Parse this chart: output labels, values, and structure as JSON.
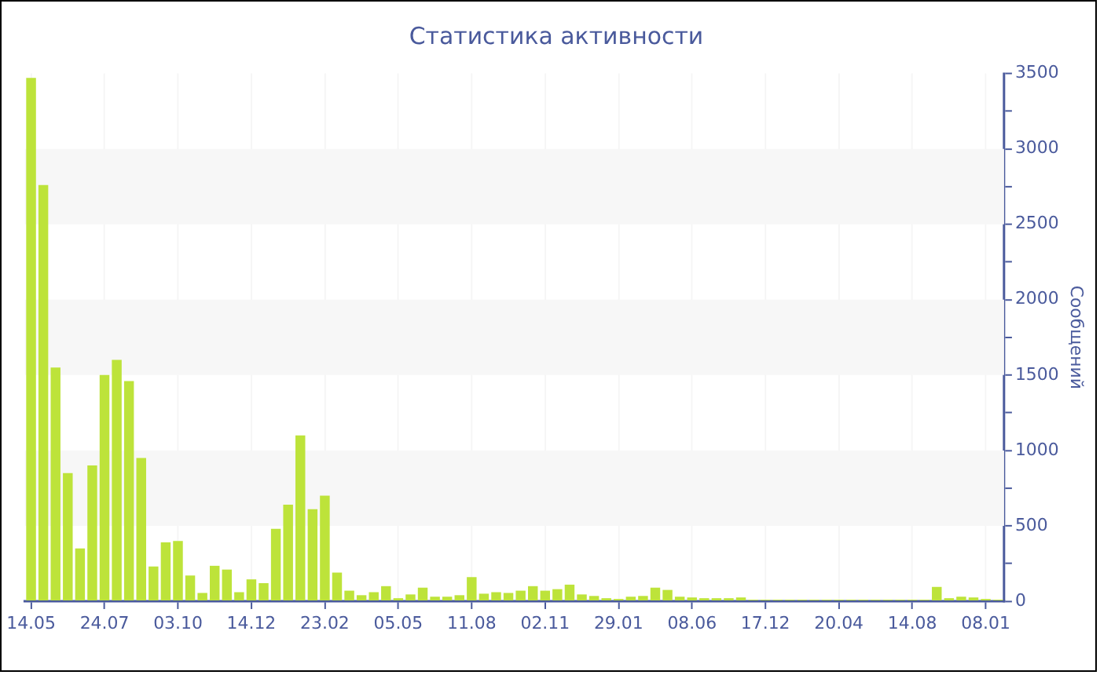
{
  "chart_data": {
    "type": "bar",
    "title": "Статистика активности",
    "ylabel": "Сообщений",
    "categories": [
      "14.05",
      null,
      null,
      null,
      null,
      null,
      "24.07",
      null,
      null,
      null,
      null,
      null,
      "03.10",
      null,
      null,
      null,
      null,
      null,
      "14.12",
      null,
      null,
      null,
      null,
      null,
      "23.02",
      null,
      null,
      null,
      null,
      null,
      "05.05",
      null,
      null,
      null,
      null,
      null,
      "11.08",
      null,
      null,
      null,
      null,
      null,
      "02.11",
      null,
      null,
      null,
      null,
      null,
      "29.01",
      null,
      null,
      null,
      null,
      null,
      "08.06",
      null,
      null,
      null,
      null,
      null,
      "17.12",
      null,
      null,
      null,
      null,
      null,
      "20.04",
      null,
      null,
      null,
      null,
      null,
      "14.08",
      null,
      null,
      null,
      null,
      null,
      "08.01",
      null
    ],
    "values": [
      3470,
      2760,
      1550,
      850,
      350,
      900,
      1500,
      1600,
      1460,
      950,
      230,
      390,
      400,
      170,
      55,
      235,
      210,
      60,
      145,
      120,
      480,
      640,
      1100,
      610,
      700,
      190,
      70,
      40,
      60,
      100,
      20,
      45,
      90,
      30,
      30,
      40,
      160,
      50,
      60,
      55,
      70,
      100,
      70,
      80,
      110,
      45,
      35,
      20,
      15,
      30,
      35,
      90,
      75,
      30,
      25,
      20,
      20,
      20,
      25,
      10,
      10,
      10,
      10,
      10,
      10,
      10,
      10,
      10,
      10,
      10,
      10,
      10,
      10,
      10,
      95,
      20,
      30,
      25,
      15,
      10
    ],
    "color": "#bde33a",
    "ylim": [
      0,
      3500
    ],
    "yticks": [
      0,
      {
        "value": 250,
        "label": null
      },
      500,
      {
        "value": 750,
        "label": null
      },
      1000,
      {
        "value": 1250,
        "label": null
      },
      1500,
      {
        "value": 1750,
        "label": null
      },
      2000,
      {
        "value": 2250,
        "label": null
      },
      2500,
      {
        "value": 2750,
        "label": null
      },
      3000,
      {
        "value": 3250,
        "label": null
      },
      3500
    ],
    "grid": true,
    "legend": false
  }
}
